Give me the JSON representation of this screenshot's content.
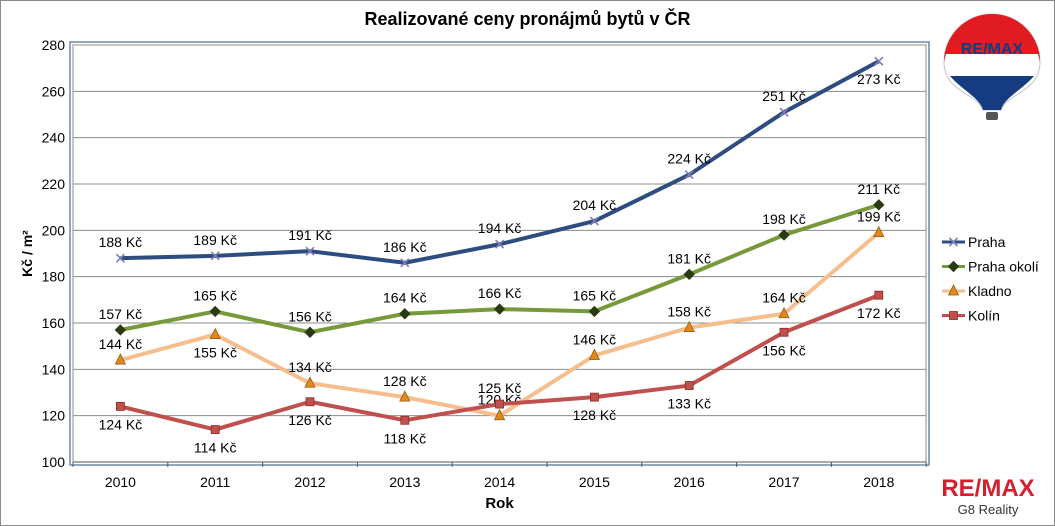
{
  "title": "Realizované ceny pronájmů bytů v ČR",
  "chart_data": {
    "type": "line",
    "title": "Realizované ceny pronájmů bytů v ČR",
    "xlabel": "Rok",
    "ylabel": "Kč / m²",
    "x": [
      "2010",
      "2011",
      "2012",
      "2013",
      "2014",
      "2015",
      "2016",
      "2017",
      "2018"
    ],
    "ylim": [
      100,
      280
    ],
    "yticks": [
      100,
      120,
      140,
      160,
      180,
      200,
      220,
      240,
      260,
      280
    ],
    "grid": true,
    "legend": "right",
    "series": [
      {
        "name": "Praha",
        "color": "#2d4d80",
        "marker": "x",
        "values": [
          188,
          189,
          191,
          186,
          194,
          204,
          224,
          251,
          273
        ],
        "labels": [
          "188 Kč",
          "189 Kč",
          "191 Kč",
          "186 Kč",
          "194 Kč",
          "204 Kč",
          "224 Kč",
          "251 Kč",
          "273 Kč"
        ]
      },
      {
        "name": "Praha okolí",
        "color": "#77993a",
        "marker": "diamond",
        "values": [
          157,
          165,
          156,
          164,
          166,
          165,
          181,
          198,
          211
        ],
        "labels": [
          "157 Kč",
          "165 Kč",
          "156 Kč",
          "164 Kč",
          "166 Kč",
          "165 Kč",
          "181 Kč",
          "198 Kč",
          "211 Kč"
        ]
      },
      {
        "name": "Kladno",
        "color": "#f5be8c",
        "marker": "triangle",
        "values": [
          144,
          155,
          134,
          128,
          120,
          146,
          158,
          164,
          199
        ],
        "labels": [
          "144 Kč",
          "155 Kč",
          "134 Kč",
          "128 Kč",
          "120 Kč",
          "146 Kč",
          "158 Kč",
          "164 Kč",
          "199 Kč"
        ]
      },
      {
        "name": "Kolín",
        "color": "#c0504d",
        "marker": "square",
        "values": [
          124,
          114,
          126,
          118,
          125,
          128,
          133,
          156,
          172
        ],
        "labels": [
          "124 Kč",
          "114 Kč",
          "126 Kč",
          "118 Kč",
          "125 Kč",
          "128 Kč",
          "133 Kč",
          "156 Kč",
          "172 Kč"
        ]
      }
    ]
  },
  "brand": {
    "balloon_text": "RE/MAX",
    "name": "RE/MAX",
    "subtitle": "G8 Reality"
  }
}
